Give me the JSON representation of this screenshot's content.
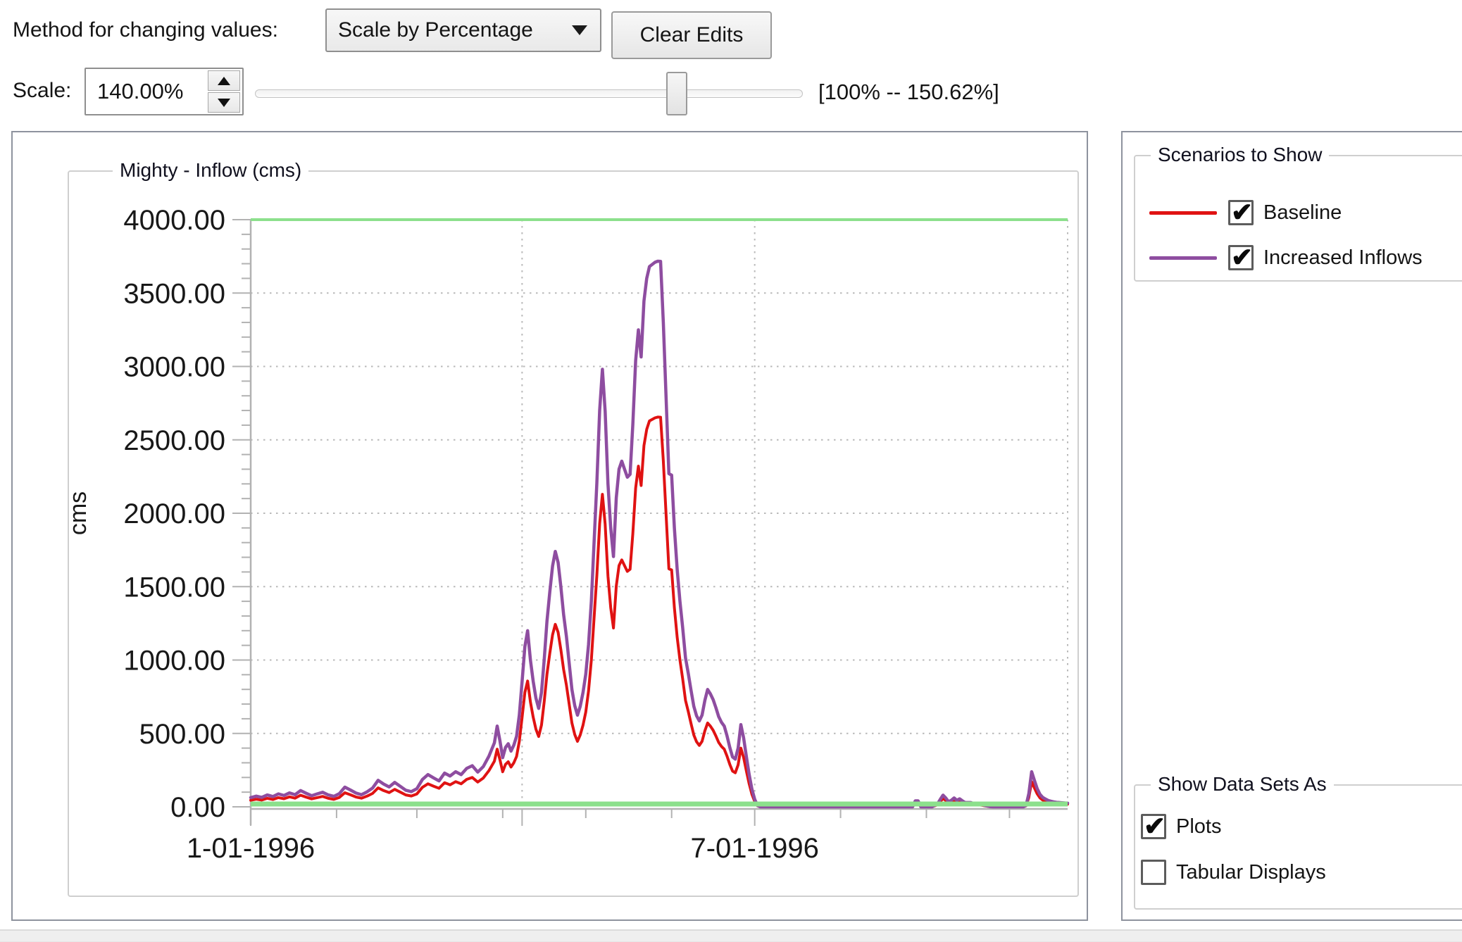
{
  "toolbar": {
    "method_label": "Method for changing values:",
    "method_value": "Scale by Percentage",
    "clear_edits_label": "Clear Edits",
    "scale_label": "Scale:",
    "scale_value": "140.00%",
    "range_label": "[100% -- 150.62%]"
  },
  "chart": {
    "group_title": "Mighty - Inflow (cms)"
  },
  "chart_data": {
    "type": "line",
    "title": "Mighty - Inflow (cms)",
    "ylabel": "cms",
    "ylim": [
      0,
      4000
    ],
    "y_tick_step": 500,
    "y_minor_step": 100,
    "y_tick_labels": [
      "0.00",
      "500.00",
      "1000.00",
      "1500.00",
      "2000.00",
      "2500.00",
      "3000.00",
      "3500.00",
      "4000.00"
    ],
    "x_range_days": [
      0,
      295
    ],
    "x_ticks": [
      {
        "label": "1-01-1996",
        "day": 0
      },
      {
        "label": "7-01-1996",
        "day": 182
      }
    ],
    "x_major_days": [
      0,
      98,
      182
    ],
    "x_grid_days": [
      98,
      182
    ],
    "x_minor_days": [
      31,
      60,
      91,
      121,
      152,
      213,
      244,
      274
    ],
    "grid": true,
    "legend_position": "right",
    "bounds_lines": {
      "upper": 4000,
      "lower": 0,
      "color": "#8ce08c"
    },
    "series": [
      {
        "name": "Baseline",
        "color": "#e01212",
        "points": [
          [
            0,
            45
          ],
          [
            2,
            52
          ],
          [
            4,
            46
          ],
          [
            6,
            58
          ],
          [
            8,
            50
          ],
          [
            10,
            63
          ],
          [
            12,
            55
          ],
          [
            14,
            68
          ],
          [
            16,
            59
          ],
          [
            18,
            79
          ],
          [
            20,
            66
          ],
          [
            22,
            54
          ],
          [
            24,
            63
          ],
          [
            26,
            71
          ],
          [
            28,
            58
          ],
          [
            30,
            51
          ],
          [
            32,
            64
          ],
          [
            34,
            96
          ],
          [
            36,
            82
          ],
          [
            38,
            67
          ],
          [
            40,
            59
          ],
          [
            42,
            73
          ],
          [
            44,
            91
          ],
          [
            46,
            129
          ],
          [
            48,
            111
          ],
          [
            50,
            97
          ],
          [
            52,
            119
          ],
          [
            54,
            100
          ],
          [
            56,
            81
          ],
          [
            58,
            74
          ],
          [
            60,
            88
          ],
          [
            62,
            133
          ],
          [
            64,
            157
          ],
          [
            66,
            141
          ],
          [
            68,
            126
          ],
          [
            70,
            164
          ],
          [
            72,
            150
          ],
          [
            74,
            171
          ],
          [
            76,
            157
          ],
          [
            78,
            187
          ],
          [
            80,
            200
          ],
          [
            82,
            169
          ],
          [
            84,
            196
          ],
          [
            86,
            246
          ],
          [
            88,
            311
          ],
          [
            89,
            393
          ],
          [
            90,
            321
          ],
          [
            91,
            239
          ],
          [
            92,
            289
          ],
          [
            93,
            307
          ],
          [
            94,
            271
          ],
          [
            95,
            300
          ],
          [
            96,
            343
          ],
          [
            97,
            446
          ],
          [
            98,
            611
          ],
          [
            99,
            779
          ],
          [
            100,
            857
          ],
          [
            101,
            714
          ],
          [
            102,
            611
          ],
          [
            103,
            529
          ],
          [
            104,
            479
          ],
          [
            105,
            557
          ],
          [
            106,
            718
          ],
          [
            107,
            904
          ],
          [
            108,
            1046
          ],
          [
            109,
            1171
          ],
          [
            110,
            1243
          ],
          [
            111,
            1189
          ],
          [
            112,
            1071
          ],
          [
            113,
            936
          ],
          [
            114,
            829
          ],
          [
            115,
            700
          ],
          [
            116,
            571
          ],
          [
            117,
            493
          ],
          [
            118,
            446
          ],
          [
            119,
            489
          ],
          [
            120,
            557
          ],
          [
            121,
            646
          ],
          [
            122,
            789
          ],
          [
            123,
            1000
          ],
          [
            124,
            1289
          ],
          [
            125,
            1575
          ],
          [
            126,
            1929
          ],
          [
            127,
            2129
          ],
          [
            128,
            1925
          ],
          [
            129,
            1571
          ],
          [
            130,
            1357
          ],
          [
            131,
            1218
          ],
          [
            132,
            1504
          ],
          [
            133,
            1643
          ],
          [
            134,
            1682
          ],
          [
            135,
            1643
          ],
          [
            136,
            1604
          ],
          [
            137,
            1618
          ],
          [
            138,
            1861
          ],
          [
            139,
            2171
          ],
          [
            140,
            2321
          ],
          [
            141,
            2189
          ],
          [
            142,
            2461
          ],
          [
            143,
            2571
          ],
          [
            144,
            2629
          ],
          [
            146,
            2650
          ],
          [
            147,
            2655
          ],
          [
            148,
            2654
          ],
          [
            149,
            2357
          ],
          [
            150,
            1993
          ],
          [
            151,
            1621
          ],
          [
            152,
            1614
          ],
          [
            153,
            1357
          ],
          [
            154,
            1154
          ],
          [
            155,
            1000
          ],
          [
            156,
            871
          ],
          [
            157,
            725
          ],
          [
            158,
            650
          ],
          [
            159,
            568
          ],
          [
            160,
            489
          ],
          [
            161,
            443
          ],
          [
            162,
            418
          ],
          [
            163,
            446
          ],
          [
            164,
            518
          ],
          [
            165,
            571
          ],
          [
            166,
            550
          ],
          [
            167,
            521
          ],
          [
            168,
            482
          ],
          [
            169,
            439
          ],
          [
            170,
            411
          ],
          [
            171,
            393
          ],
          [
            172,
            346
          ],
          [
            173,
            289
          ],
          [
            174,
            243
          ],
          [
            175,
            232
          ],
          [
            176,
            286
          ],
          [
            177,
            400
          ],
          [
            178,
            336
          ],
          [
            179,
            243
          ],
          [
            180,
            157
          ],
          [
            181,
            86
          ],
          [
            182,
            36
          ],
          [
            183,
            7
          ],
          [
            184,
            0
          ],
          [
            190,
            0
          ],
          [
            200,
            0
          ],
          [
            210,
            0
          ],
          [
            220,
            0
          ],
          [
            230,
            0
          ],
          [
            238,
            0
          ],
          [
            239,
            0
          ],
          [
            240,
            29
          ],
          [
            241,
            29
          ],
          [
            242,
            0
          ],
          [
            246,
            0
          ],
          [
            248,
            14
          ],
          [
            249,
            36
          ],
          [
            250,
            57
          ],
          [
            251,
            43
          ],
          [
            252,
            25
          ],
          [
            253,
            32
          ],
          [
            254,
            43
          ],
          [
            255,
            32
          ],
          [
            256,
            39
          ],
          [
            257,
            29
          ],
          [
            258,
            21
          ],
          [
            259,
            21
          ],
          [
            260,
            21
          ],
          [
            261,
            16
          ],
          [
            262,
            14
          ],
          [
            263,
            13
          ],
          [
            264,
            11
          ],
          [
            265,
            7
          ],
          [
            266,
            4
          ],
          [
            267,
            1
          ],
          [
            268,
            0
          ],
          [
            272,
            0
          ],
          [
            276,
            0
          ],
          [
            279,
            0
          ],
          [
            280,
            7
          ],
          [
            281,
            64
          ],
          [
            282,
            171
          ],
          [
            283,
            129
          ],
          [
            284,
            89
          ],
          [
            285,
            61
          ],
          [
            286,
            46
          ],
          [
            287,
            38
          ],
          [
            288,
            31
          ],
          [
            289,
            27
          ],
          [
            290,
            24
          ],
          [
            291,
            22
          ],
          [
            292,
            21
          ],
          [
            293,
            20
          ],
          [
            294,
            19
          ],
          [
            295,
            18
          ]
        ]
      },
      {
        "name": "Increased Inflows",
        "color": "#8e4da0",
        "scale_of_baseline": 1.4
      }
    ]
  },
  "scenarios_panel": {
    "title": "Scenarios to Show",
    "items": [
      {
        "label": "Baseline",
        "checked": true,
        "color": "#e01212"
      },
      {
        "label": "Increased Inflows",
        "checked": true,
        "color": "#8e4da0"
      }
    ]
  },
  "datasets_panel": {
    "title": "Show Data Sets As",
    "items": [
      {
        "label": "Plots",
        "checked": true
      },
      {
        "label": "Tabular Displays",
        "checked": false
      }
    ]
  }
}
